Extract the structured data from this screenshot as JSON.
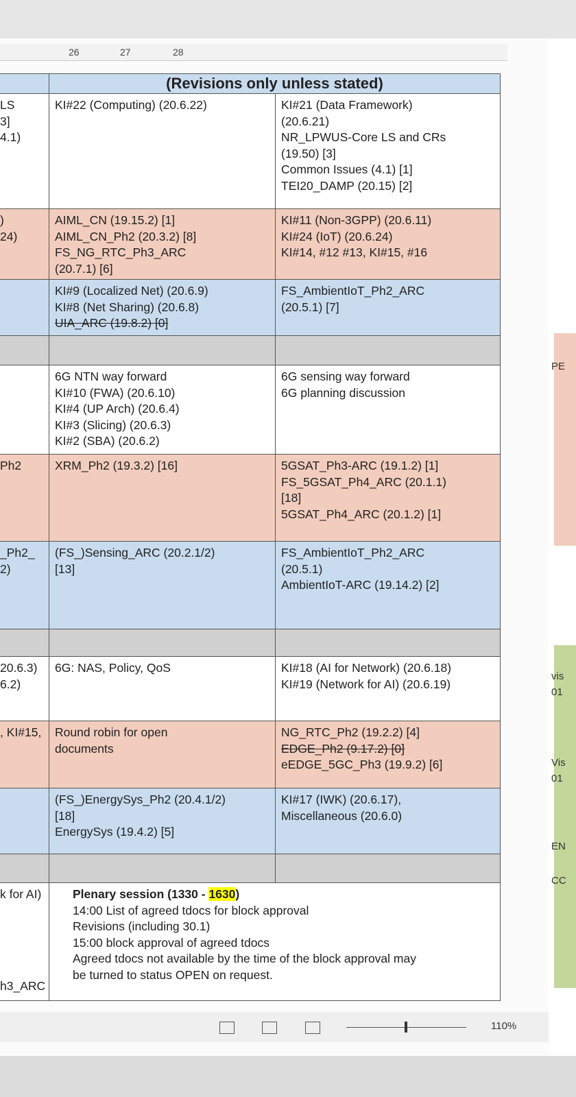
{
  "ruler": {
    "marks": [
      "26",
      "27",
      "28"
    ]
  },
  "table": {
    "header": "(Revisions only unless stated)",
    "rows": [
      {
        "bg": "#ffffff",
        "left": [
          "LS",
          "3]",
          "4.1)"
        ],
        "mid": [
          "KI#22 (Computing) (20.6.22)"
        ],
        "right": [
          "KI#21 (Data Framework)",
          "(20.6.21)",
          "NR_LPWUS-Core LS and CRs",
          "(19.50) [3]",
          "Common Issues (4.1) [1]",
          "TEI20_DAMP (20.15) [2]"
        ]
      },
      {
        "bg": "#f2cdbd",
        "left": [
          ")",
          "24)"
        ],
        "mid": [
          "AIML_CN (19.15.2) [1]",
          "AIML_CN_Ph2 (20.3.2) [8]",
          "FS_NG_RTC_Ph3_ARC",
          "(20.7.1) [6]"
        ],
        "right": [
          "KI#11 (Non-3GPP) (20.6.11)",
          "KI#24 (IoT) (20.6.24)",
          "KI#14, #12 #13, KI#15, #16"
        ]
      },
      {
        "bg": "#c9dcef",
        "left": [],
        "mid": [
          "KI#9 (Localized Net) (20.6.9)",
          "KI#8 (Net Sharing) (20.6.8)",
          {
            "text": "UIA_ARC (19.8.2) [0]",
            "strike": true
          }
        ],
        "right": [
          "FS_AmbientIoT_Ph2_ARC",
          "(20.5.1) [7]"
        ]
      },
      {
        "bg": "#d0d0d0",
        "left": [],
        "mid": [],
        "right": []
      },
      {
        "bg": "#ffffff",
        "left": [],
        "mid": [
          "6G NTN way forward",
          "KI#10 (FWA) (20.6.10)",
          "KI#4 (UP Arch) (20.6.4)",
          "KI#3 (Slicing) (20.6.3)",
          "KI#2 (SBA) (20.6.2)"
        ],
        "right": [
          "6G sensing way forward",
          "6G planning discussion"
        ]
      },
      {
        "bg": "#f2cdbd",
        "left": [
          "Ph2"
        ],
        "mid": [
          "XRM_Ph2 (19.3.2) [16]"
        ],
        "right": [
          "5GSAT_Ph3-ARC (19.1.2) [1]",
          "FS_5GSAT_Ph4_ARC (20.1.1)",
          "[18]",
          "5GSAT_Ph4_ARC (20.1.2) [1]"
        ]
      },
      {
        "bg": "#c9dcef",
        "left": [
          "_Ph2_",
          "2)"
        ],
        "mid": [
          "(FS_)Sensing_ARC (20.2.1/2)",
          "[13]"
        ],
        "right": [
          "FS_AmbientIoT_Ph2_ARC",
          "(20.5.1)",
          "AmbientIoT-ARC (19.14.2) [2]"
        ]
      },
      {
        "bg": "#d0d0d0",
        "left": [],
        "mid": [],
        "right": []
      },
      {
        "bg": "#ffffff",
        "left": [
          "20.6.3)",
          "6.2)"
        ],
        "mid": [
          "6G: NAS, Policy, QoS"
        ],
        "right": [
          "KI#18 (AI for Network) (20.6.18)",
          "KI#19 (Network for AI) (20.6.19)"
        ]
      },
      {
        "bg": "#f2cdbd",
        "left": [
          ", KI#15,"
        ],
        "mid": [
          "Round robin for open",
          "documents"
        ],
        "right": [
          "NG_RTC_Ph2 (19.2.2) [4]",
          {
            "text": "EDGE_Ph2 (9.17.2) [0]",
            "strike": true
          },
          "eEDGE_5GC_Ph3 (19.9.2) [6]"
        ]
      },
      {
        "bg": "#c9dcef",
        "left": [],
        "mid": [
          "(FS_)EnergySys_Ph2 (20.4.1/2)",
          "[18]",
          "EnergySys (19.4.2) [5]"
        ],
        "right": [
          "KI#17 (IWK) (20.6.17),",
          "Miscellaneous (20.6.0)"
        ]
      },
      {
        "bg": "#d0d0d0",
        "left": [],
        "mid": [],
        "right": []
      }
    ],
    "plenary": {
      "left": [
        "k for AI)",
        "h3_ARC"
      ],
      "title": [
        "Plenary session (1330 - ",
        "1630",
        ")"
      ],
      "lines": [
        "14:00 List of agreed tdocs for block approval",
        "Revisions (including 30.1)",
        "15:00 block approval of agreed tdocs",
        "Agreed tdocs not available by the time of the block approval may",
        "be turned to status OPEN on request."
      ]
    }
  },
  "side": [
    "PE",
    "vis",
    "01",
    "Vis",
    "01",
    "EN",
    "CC"
  ],
  "status": {
    "zoom": "110%"
  }
}
